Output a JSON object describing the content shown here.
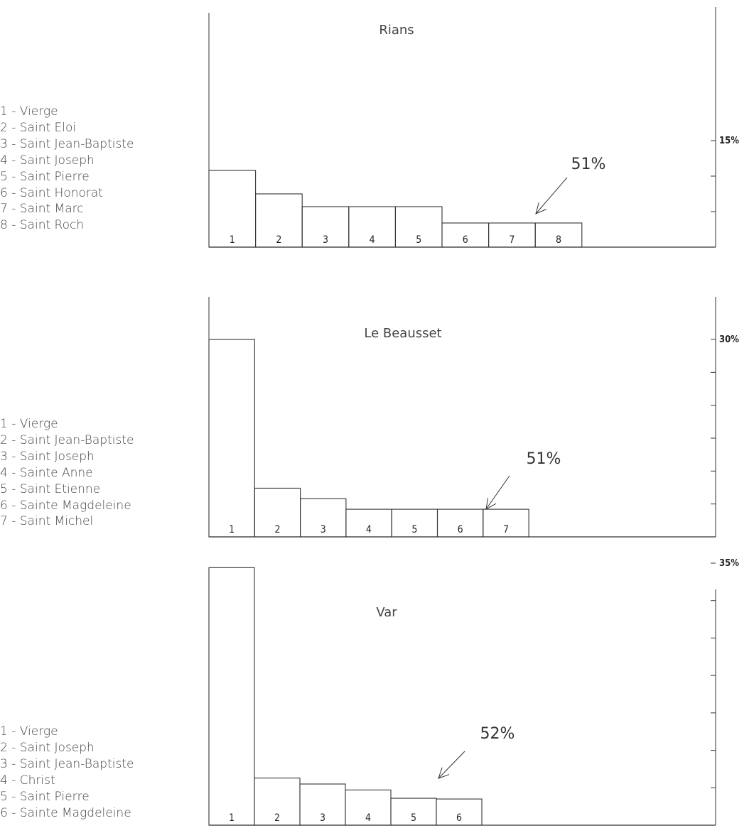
{
  "chart_data": [
    {
      "type": "bar",
      "title": "Rians",
      "categories": [
        "1",
        "2",
        "3",
        "4",
        "5",
        "6",
        "7",
        "8"
      ],
      "category_names": [
        "Vierge",
        "Saint Eloi",
        "Saint Jean-Baptiste",
        "Saint Joseph",
        "Saint Pierre",
        "Saint Honorat",
        "Saint Marc",
        "Saint Roch"
      ],
      "legend_items": [
        "1 - Vierge",
        "2 - Saint Eloi",
        "3 - Saint Jean-Baptiste",
        "4 - Saint Joseph",
        "5 - Saint Pierre",
        "6 - Saint Honorat",
        "7 - Saint Marc",
        "8 - Saint Roch"
      ],
      "values": [
        10.8,
        7.5,
        5.7,
        5.7,
        5.7,
        3.4,
        3.4,
        3.4
      ],
      "ylim": [
        0,
        15
      ],
      "ytick_label": "15%",
      "annotation": "51%",
      "legend_position": "left",
      "grid": false
    },
    {
      "type": "bar",
      "title": "Le Beausset",
      "categories": [
        "1",
        "2",
        "3",
        "4",
        "5",
        "6",
        "7"
      ],
      "category_names": [
        "Vierge",
        "Saint Jean-Baptiste",
        "Saint Joseph",
        "Sainte Anne",
        "Saint Etienne",
        "Sainte Magdeleine",
        "Saint Michel"
      ],
      "legend_items": [
        "1 - Vierge",
        "2 - Saint Jean-Baptiste",
        "3 - Saint Joseph",
        "4 - Sainte Anne",
        "5 - Saint Etienne",
        "6 - Sainte Magdeleine",
        "7 - Saint Michel"
      ],
      "values": [
        30.0,
        7.4,
        5.8,
        4.2,
        4.2,
        4.2,
        4.2
      ],
      "ylim": [
        0,
        30
      ],
      "ytick_label": "30%",
      "annotation": "51%",
      "legend_position": "left",
      "grid": false
    },
    {
      "type": "bar",
      "title": "Var",
      "categories": [
        "1",
        "2",
        "3",
        "4",
        "5",
        "6"
      ],
      "category_names": [
        "Vierge",
        "Saint Joseph",
        "Saint Jean-Baptiste",
        "Christ",
        "Saint Pierre",
        "Sainte Magdeleine"
      ],
      "legend_items": [
        "1 - Vierge",
        "2 - Saint Joseph",
        "3 - Saint Jean-Baptiste",
        "4 - Christ",
        "5 - Saint Pierre",
        "6 - Sainte Magdeleine"
      ],
      "values": [
        34.4,
        6.3,
        5.5,
        4.7,
        3.6,
        3.5
      ],
      "ylim": [
        0,
        35
      ],
      "ytick_label": "35%",
      "annotation": "52%",
      "legend_position": "left",
      "grid": false
    }
  ]
}
